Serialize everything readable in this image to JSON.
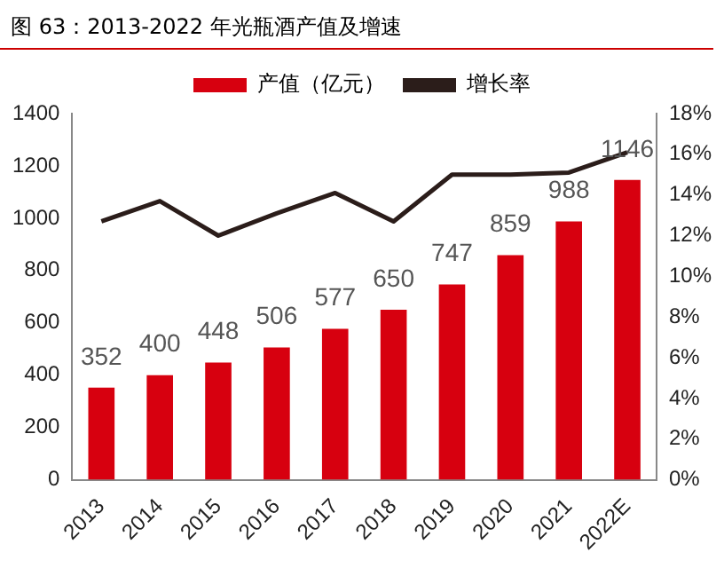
{
  "chart_data": {
    "type": "bar",
    "title": "图 63：2013-2022 年光瓶酒产值及增速",
    "categories": [
      "2013",
      "2014",
      "2015",
      "2016",
      "2017",
      "2018",
      "2019",
      "2020",
      "2021",
      "2022E"
    ],
    "series": [
      {
        "name": "产值（亿元）",
        "color": "#d7000f",
        "values": [
          352,
          400,
          448,
          506,
          577,
          650,
          747,
          859,
          988,
          1146
        ],
        "value_labels": [
          "352",
          "400",
          "448",
          "506",
          "577",
          "650",
          "747",
          "859",
          "988",
          "1146"
        ]
      },
      {
        "name": "增长率",
        "type": "line",
        "axis": "y2",
        "color": "#2b1d1a",
        "values": [
          12.7,
          13.7,
          12.0,
          13.1,
          14.1,
          12.7,
          15.0,
          15.0,
          15.1,
          16.1
        ]
      }
    ],
    "ylim": [
      0,
      1400
    ],
    "yticks": [
      0,
      200,
      400,
      600,
      800,
      1000,
      1200,
      1400
    ],
    "y2lim": [
      0,
      18
    ],
    "y2ticks": [
      {
        "value": 0,
        "label": "0%"
      },
      {
        "value": 2,
        "label": "2%"
      },
      {
        "value": 4,
        "label": "4%"
      },
      {
        "value": 6,
        "label": "6%"
      },
      {
        "value": 8,
        "label": "8%"
      },
      {
        "value": 10,
        "label": "10%"
      },
      {
        "value": 12,
        "label": "12%"
      },
      {
        "value": 14,
        "label": "14%"
      },
      {
        "value": 16,
        "label": "16%"
      },
      {
        "value": 18,
        "label": "18%"
      }
    ],
    "grid": false,
    "legend": "top",
    "marker": "none"
  }
}
